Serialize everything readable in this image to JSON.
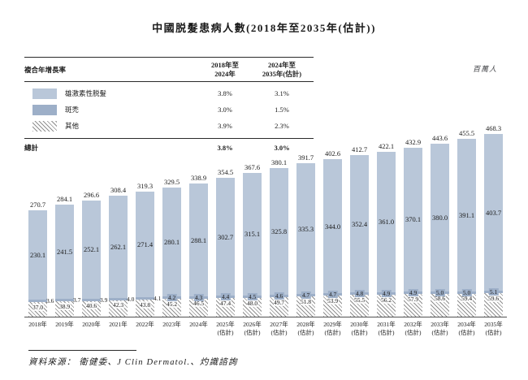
{
  "title": "中國脱髮患病人數(2018年至2035年(估計))",
  "unit_label": "百萬人",
  "cagr_table": {
    "corner_label": "複合年增長率",
    "columns": [
      {
        "line1": "2018年至",
        "line2": "2024年"
      },
      {
        "line1": "2024年至",
        "line2": "2035年(估計)"
      }
    ],
    "rows": [
      {
        "label": "雄激素性脱髮",
        "swatch": "androgenetic-alopecia",
        "values": [
          "3.8%",
          "3.1%"
        ]
      },
      {
        "label": "斑禿",
        "swatch": "alopecia-areata",
        "values": [
          "3.0%",
          "1.5%"
        ]
      },
      {
        "label": "其他",
        "swatch": "others",
        "values": [
          "3.9%",
          "2.3%"
        ]
      }
    ],
    "total_row": {
      "label": "總計",
      "values": [
        "3.8%",
        "3.0%"
      ]
    }
  },
  "chart_data": {
    "type": "bar",
    "stacked": true,
    "title": "中國脱髮患病人數(2018年至2035年(估計))",
    "ylabel": "百萬人",
    "legend_position": "top-left-table",
    "grid": false,
    "categories": [
      "2018年",
      "2019年",
      "2020年",
      "2021年",
      "2022年",
      "2023年",
      "2024年",
      "2025年(估計)",
      "2026年(估計)",
      "2027年(估計)",
      "2028年(估計)",
      "2029年(估計)",
      "2030年(估計)",
      "2031年(估計)",
      "2032年(估計)",
      "2033年(估計)",
      "2034年(估計)",
      "2035年(估計)"
    ],
    "series": [
      {
        "name": "雄激素性脱髮",
        "color": "#b9c7d9",
        "values": [
          230.1,
          241.5,
          252.1,
          262.1,
          271.4,
          280.1,
          288.1,
          302.7,
          315.1,
          325.8,
          335.3,
          344.0,
          352.4,
          361.0,
          370.1,
          380.0,
          391.1,
          403.7
        ]
      },
      {
        "name": "斑禿",
        "color": "#9dafc8",
        "values": [
          3.6,
          3.7,
          3.9,
          4.0,
          4.1,
          4.2,
          4.3,
          4.4,
          4.5,
          4.6,
          4.7,
          4.7,
          4.8,
          4.9,
          4.9,
          5.0,
          5.0,
          5.1
        ]
      },
      {
        "name": "其他",
        "color": "hatch-diagonal-gray",
        "values": [
          37.0,
          38.9,
          40.6,
          42.3,
          43.8,
          45.2,
          46.5,
          47.4,
          48.0,
          49.7,
          51.8,
          53.9,
          55.5,
          56.2,
          57.9,
          58.6,
          59.4,
          59.6
        ]
      }
    ],
    "totals": [
      270.7,
      284.1,
      296.6,
      308.4,
      319.3,
      329.5,
      338.9,
      354.5,
      367.6,
      380.1,
      391.7,
      402.6,
      412.7,
      422.1,
      432.9,
      443.6,
      455.5,
      468.3
    ],
    "ylim": [
      0,
      500
    ]
  },
  "colors": {
    "androgenetic": "#b9c7d9",
    "areata": "#9dafc8",
    "hatch_line": "#8e8e8e",
    "axis": "#515151",
    "text": "#1a1a1a"
  },
  "footer": {
    "source_text": "資料來源： 衛健委、J Clin Dermatol.、灼識諮詢"
  }
}
